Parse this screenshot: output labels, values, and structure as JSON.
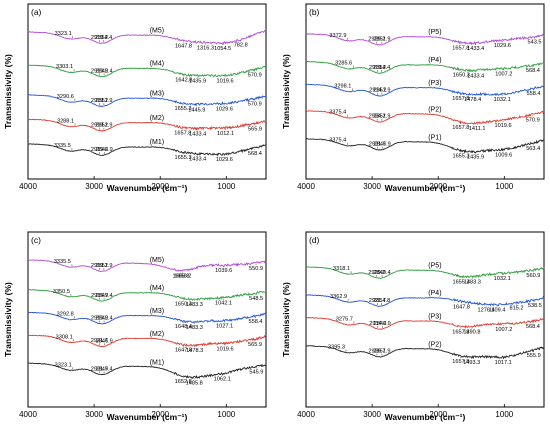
{
  "colors": {
    "purple": "#b24bd8",
    "green": "#2e9e3e",
    "blue": "#2456d6",
    "red": "#e03a2e",
    "black": "#222222"
  },
  "chart_data": [
    {
      "type": "line",
      "panel": "(a)",
      "xlabel": "Wavenumber (cm⁻¹)",
      "ylabel": "Transmissivity (%)",
      "xlim": [
        4000,
        400
      ],
      "xticks": [
        4000,
        3000,
        2000,
        1000
      ],
      "series": [
        {
          "name": "(M5)",
          "color": "purple",
          "base": 14,
          "peaks": [
            {
              "x": 3323.1,
              "d": 2.5,
              "label": "3323.1"
            },
            {
              "x": 2919.2,
              "d": 3,
              "label": "2919.2"
            },
            {
              "x": 2854.4,
              "d": 3,
              "label": "2854.4"
            },
            {
              "x": 1647.8,
              "d": 4.5,
              "label": "1647.8"
            },
            {
              "x": 1316.3,
              "d": 3,
              "label": "1316.3"
            },
            {
              "x": 1054.5,
              "d": 4,
              "label": "1054.5"
            },
            {
              "x": 782.8,
              "d": 3.5,
              "label": "782.8"
            }
          ]
        },
        {
          "name": "(M4)",
          "color": "green",
          "base": 33,
          "peaks": [
            {
              "x": 3303.1,
              "d": 2.5,
              "label": "3303.1"
            },
            {
              "x": 2919.2,
              "d": 3,
              "label": "2919.2"
            },
            {
              "x": 2849.4,
              "d": 3,
              "label": "2849.4"
            },
            {
              "x": 1642.8,
              "d": 4,
              "label": "1642.8"
            },
            {
              "x": 1435.9,
              "d": 3,
              "label": "1435.9"
            },
            {
              "x": 1019.6,
              "d": 6,
              "label": "1019.6"
            },
            {
              "x": 570.9,
              "d": 3,
              "label": "570.9"
            }
          ]
        },
        {
          "name": "(M3)",
          "color": "blue",
          "base": 50,
          "peaks": [
            {
              "x": 3290.6,
              "d": 2.5,
              "label": "3290.6"
            },
            {
              "x": 2919.2,
              "d": 3,
              "label": "2919.2"
            },
            {
              "x": 2851.9,
              "d": 3,
              "label": "2851.9"
            },
            {
              "x": 1655.3,
              "d": 3.5,
              "label": "1655.3"
            },
            {
              "x": 1445.9,
              "d": 3,
              "label": "1445.9"
            },
            {
              "x": 1029.6,
              "d": 5,
              "label": "1029.6"
            },
            {
              "x": 570.9,
              "d": 3,
              "label": "570.9"
            }
          ]
        },
        {
          "name": "(M2)",
          "color": "red",
          "base": 64,
          "peaks": [
            {
              "x": 3288.1,
              "d": 2.5,
              "label": "3288.1"
            },
            {
              "x": 2919.2,
              "d": 3,
              "label": "2919.2"
            },
            {
              "x": 2851.9,
              "d": 3,
              "label": "2851.9"
            },
            {
              "x": 1657.8,
              "d": 3.5,
              "label": "1657.8"
            },
            {
              "x": 1433.4,
              "d": 3,
              "label": "1433.4"
            },
            {
              "x": 1012.1,
              "d": 5,
              "label": "1012.1"
            },
            {
              "x": 565.9,
              "d": 3,
              "label": "565.9"
            }
          ]
        },
        {
          "name": "(M1)",
          "color": "black",
          "base": 78,
          "peaks": [
            {
              "x": 3335.5,
              "d": 2.5,
              "label": "3335.5"
            },
            {
              "x": 2919.2,
              "d": 3,
              "label": "2919.2"
            },
            {
              "x": 2846.9,
              "d": 3,
              "label": "2846.9"
            },
            {
              "x": 1655.3,
              "d": 3.5,
              "label": "1655.3"
            },
            {
              "x": 1433.4,
              "d": 3,
              "label": "1433.4"
            },
            {
              "x": 1029.6,
              "d": 6,
              "label": "1029.6"
            },
            {
              "x": 568.4,
              "d": 3,
              "label": "568.4"
            }
          ]
        }
      ]
    },
    {
      "type": "line",
      "panel": "(b)",
      "xlabel": "Wavenumber (cm⁻¹)",
      "ylabel": "Transmissivity (%)",
      "xlim": [
        4000,
        400
      ],
      "xticks": [
        4000,
        3000,
        2000,
        1000
      ],
      "series": [
        {
          "name": "(P5)",
          "color": "purple",
          "base": 15,
          "peaks": [
            {
              "x": 3372.9,
              "d": 2.5,
              "label": "3372.9"
            },
            {
              "x": 2929.2,
              "d": 3,
              "label": "2929.2"
            },
            {
              "x": 2851.9,
              "d": 3,
              "label": "2851.9"
            },
            {
              "x": 1657.8,
              "d": 4,
              "label": "1657.8"
            },
            {
              "x": 1433.4,
              "d": 3,
              "label": "1433.4"
            },
            {
              "x": 1029.6,
              "d": 4,
              "label": "1029.6"
            },
            {
              "x": 543.5,
              "d": 3,
              "label": "543.5"
            }
          ]
        },
        {
          "name": "(P4)",
          "color": "green",
          "base": 31,
          "peaks": [
            {
              "x": 3285.6,
              "d": 2.5,
              "label": "3285.6"
            },
            {
              "x": 2919.2,
              "d": 3,
              "label": "2919.2"
            },
            {
              "x": 2854.4,
              "d": 3,
              "label": "2854.4"
            },
            {
              "x": 1650.3,
              "d": 3.5,
              "label": "1650.3"
            },
            {
              "x": 1433.4,
              "d": 3,
              "label": "1433.4"
            },
            {
              "x": 1007.2,
              "d": 4,
              "label": "1007.2"
            },
            {
              "x": 568.4,
              "d": 3,
              "label": "568.4"
            }
          ]
        },
        {
          "name": "(P3)",
          "color": "blue",
          "base": 44,
          "peaks": [
            {
              "x": 3298.1,
              "d": 2.5,
              "label": "3298.1"
            },
            {
              "x": 2914.2,
              "d": 3,
              "label": "2914.2"
            },
            {
              "x": 2851.9,
              "d": 3,
              "label": "2851.9"
            },
            {
              "x": 1657.8,
              "d": 3.5,
              "label": "1657.8"
            },
            {
              "x": 1478.4,
              "d": 3,
              "label": "1478.4"
            },
            {
              "x": 1032.1,
              "d": 6,
              "label": "1032.1"
            },
            {
              "x": 558.4,
              "d": 3,
              "label": "558.4"
            }
          ]
        },
        {
          "name": "(P2)",
          "color": "red",
          "base": 59,
          "peaks": [
            {
              "x": 3375.4,
              "d": 2.5,
              "label": "3375.4"
            },
            {
              "x": 2924.2,
              "d": 3,
              "label": "2924.2"
            },
            {
              "x": 2851.9,
              "d": 3,
              "label": "2851.9"
            },
            {
              "x": 1657.8,
              "d": 5,
              "label": "1657.8"
            },
            {
              "x": 1411.1,
              "d": 4,
              "label": "1411.1"
            },
            {
              "x": 1019.6,
              "d": 5,
              "label": "1019.6"
            },
            {
              "x": 570.9,
              "d": 3,
              "label": "570.9"
            }
          ]
        },
        {
          "name": "(P1)",
          "color": "black",
          "base": 75,
          "peaks": [
            {
              "x": 3375.4,
              "d": 2.5,
              "label": "3375.4"
            },
            {
              "x": 2921.7,
              "d": 3,
              "label": "2921.7"
            },
            {
              "x": 2846.9,
              "d": 3,
              "label": "2846.9"
            },
            {
              "x": 1655.3,
              "d": 5,
              "label": "1655.3"
            },
            {
              "x": 1435.9,
              "d": 4,
              "label": "1435.9"
            },
            {
              "x": 1009.6,
              "d": 6,
              "label": "1009.6"
            },
            {
              "x": 563.4,
              "d": 3,
              "label": "563.4"
            }
          ]
        }
      ]
    },
    {
      "type": "line",
      "panel": "(c)",
      "xlabel": "Wavenumber (cm⁻¹)",
      "ylabel": "Transmissivity (%)",
      "xlim": [
        4000,
        400
      ],
      "xticks": [
        4000,
        3000,
        2000,
        1000
      ],
      "series": [
        {
          "name": "(M5)",
          "color": "purple",
          "base": 14,
          "peaks": [
            {
              "x": 3335.5,
              "d": 2.5,
              "label": "3335.5"
            },
            {
              "x": 2919.2,
              "d": 3,
              "label": "2919.2"
            },
            {
              "x": 2851.9,
              "d": 3,
              "label": "2851.9"
            },
            {
              "x": 1685.8,
              "d": 3,
              "label": "1685.8"
            },
            {
              "x": 1658.2,
              "d": 4,
              "label": "1658.2"
            },
            {
              "x": 1039.6,
              "d": 4,
              "label": "1039.6"
            },
            {
              "x": 550.9,
              "d": 3,
              "label": "550.9"
            }
          ]
        },
        {
          "name": "(M4)",
          "color": "green",
          "base": 31,
          "peaks": [
            {
              "x": 3350.5,
              "d": 2.5,
              "label": "3350.5"
            },
            {
              "x": 2916.7,
              "d": 3,
              "label": "2916.7"
            },
            {
              "x": 2849.4,
              "d": 3,
              "label": "2849.4"
            },
            {
              "x": 1650.3,
              "d": 3.5,
              "label": "1650.3"
            },
            {
              "x": 1483.3,
              "d": 3,
              "label": "1483.3"
            },
            {
              "x": 1042.1,
              "d": 5,
              "label": "1042.1"
            },
            {
              "x": 548.5,
              "d": 3,
              "label": "548.5"
            }
          ]
        },
        {
          "name": "(M3)",
          "color": "blue",
          "base": 44,
          "peaks": [
            {
              "x": 3292.8,
              "d": 2.5,
              "label": "3292.8"
            },
            {
              "x": 2919.2,
              "d": 3,
              "label": "2919.2"
            },
            {
              "x": 2849.4,
              "d": 3,
              "label": "2849.4"
            },
            {
              "x": 1648.4,
              "d": 3.5,
              "label": "1648.4"
            },
            {
              "x": 1483.3,
              "d": 3,
              "label": "1483.3"
            },
            {
              "x": 1027.1,
              "d": 5,
              "label": "1027.1"
            },
            {
              "x": 558.4,
              "d": 3,
              "label": "558.4"
            }
          ]
        },
        {
          "name": "(M2)",
          "color": "red",
          "base": 57,
          "peaks": [
            {
              "x": 3308.1,
              "d": 2.5,
              "label": "3308.1"
            },
            {
              "x": 2921.7,
              "d": 3,
              "label": "2921.7"
            },
            {
              "x": 2846.9,
              "d": 3,
              "label": "2846.9"
            },
            {
              "x": 1647.8,
              "d": 4,
              "label": "1647.8"
            },
            {
              "x": 1478.3,
              "d": 3,
              "label": "1478.3"
            },
            {
              "x": 1019.6,
              "d": 5,
              "label": "1019.6"
            },
            {
              "x": 565.9,
              "d": 3,
              "label": "565.9"
            }
          ]
        },
        {
          "name": "(M1)",
          "color": "black",
          "base": 73,
          "peaks": [
            {
              "x": 3323.1,
              "d": 2.5,
              "label": "3323.1"
            },
            {
              "x": 2921.7,
              "d": 3,
              "label": "2921.7"
            },
            {
              "x": 2849.4,
              "d": 3,
              "label": "2849.4"
            },
            {
              "x": 1652.8,
              "d": 5,
              "label": "1652.8"
            },
            {
              "x": 1485.8,
              "d": 4,
              "label": "1485.8"
            },
            {
              "x": 1062.1,
              "d": 6,
              "label": "1062.1"
            },
            {
              "x": 545.9,
              "d": 3,
              "label": "545.9"
            }
          ]
        }
      ]
    },
    {
      "type": "line",
      "panel": "(d)",
      "xlabel": "Wavenumber (cm⁻¹)",
      "ylabel": "Transmissivity (%)",
      "xlim": [
        4000,
        400
      ],
      "xticks": [
        4000,
        3000,
        2000,
        1000
      ],
      "series": [
        {
          "name": "(P5)",
          "color": "green",
          "base": 18,
          "peaks": [
            {
              "x": 3318.1,
              "d": 2.5,
              "label": "3318.1"
            },
            {
              "x": 2929.2,
              "d": 3,
              "label": "2929.2"
            },
            {
              "x": 2849.4,
              "d": 3,
              "label": "2849.4"
            },
            {
              "x": 1655.3,
              "d": 4,
              "label": "1655.3"
            },
            {
              "x": 1483.3,
              "d": 3,
              "label": "1483.3"
            },
            {
              "x": 1032.1,
              "d": 4,
              "label": "1032.1"
            },
            {
              "x": 560.9,
              "d": 3,
              "label": "560.9"
            }
          ]
        },
        {
          "name": "(P4)",
          "color": "blue",
          "base": 34,
          "peaks": [
            {
              "x": 3362.9,
              "d": 2.5,
              "label": "3362.9"
            },
            {
              "x": 2921.7,
              "d": 3,
              "label": "2921.7"
            },
            {
              "x": 2854.8,
              "d": 3,
              "label": "2854.8"
            },
            {
              "x": 1647.8,
              "d": 3.5,
              "label": "1647.8"
            },
            {
              "x": 1276.4,
              "d": 3,
              "label": "1276.4"
            },
            {
              "x": 1109.4,
              "d": 3,
              "label": "1109.4"
            },
            {
              "x": 815.2,
              "d": 2.5,
              "label": "815.2"
            },
            {
              "x": 538.5,
              "d": 3,
              "label": "538.5"
            }
          ]
        },
        {
          "name": "(P3)",
          "color": "red",
          "base": 47,
          "peaks": [
            {
              "x": 3275.7,
              "d": 2.5,
              "label": "3275.7"
            },
            {
              "x": 2914.2,
              "d": 3,
              "label": "2914.2"
            },
            {
              "x": 2846.9,
              "d": 3,
              "label": "2846.9"
            },
            {
              "x": 1657.8,
              "d": 3.5,
              "label": "1657.8"
            },
            {
              "x": 1490.8,
              "d": 3,
              "label": "1490.8"
            },
            {
              "x": 1007.2,
              "d": 4,
              "label": "1007.2"
            },
            {
              "x": 568.4,
              "d": 3,
              "label": "568.4"
            }
          ]
        },
        {
          "name": "(P2)",
          "color": "black",
          "base": 63,
          "peaks": [
            {
              "x": 3395.3,
              "d": 2.5,
              "label": "3395.3"
            },
            {
              "x": 2926.7,
              "d": 3,
              "label": "2926.7"
            },
            {
              "x": 2851.9,
              "d": 3,
              "label": "2851.9"
            },
            {
              "x": 1657.8,
              "d": 4,
              "label": "1657.8"
            },
            {
              "x": 1493.3,
              "d": 3.5,
              "label": "1493.3"
            },
            {
              "x": 1017.1,
              "d": 7,
              "label": "1017.1"
            },
            {
              "x": 555.9,
              "d": 3,
              "label": "555.9"
            }
          ]
        }
      ]
    }
  ]
}
